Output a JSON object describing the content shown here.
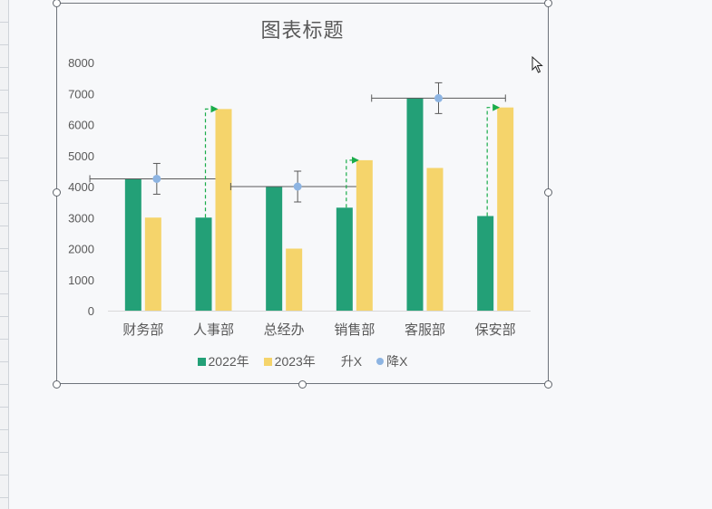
{
  "chart_data": {
    "type": "bar",
    "title": "图表标题",
    "categories": [
      "财务部",
      "人事部",
      "总经办",
      "销售部",
      "客服部",
      "保安部"
    ],
    "series": [
      {
        "name": "2022年",
        "color": "#23a077",
        "values": [
          4250,
          3000,
          4000,
          3320,
          6850,
          3050
        ]
      },
      {
        "name": "2023年",
        "color": "#f5d46b",
        "values": [
          3000,
          6500,
          2000,
          4850,
          4600,
          6550
        ]
      }
    ],
    "markers": [
      {
        "name": "升X",
        "type": "increase-arrow",
        "color": "#1aac4a",
        "applies_to": [
          "人事部",
          "销售部",
          "保安部"
        ]
      },
      {
        "name": "降X",
        "type": "point-with-error-bars",
        "color": "#8db4e2",
        "values": [
          4250,
          null,
          4000,
          null,
          6850,
          null
        ]
      }
    ],
    "ylim": [
      0,
      8000
    ],
    "yticks": [
      0,
      1000,
      2000,
      3000,
      4000,
      5000,
      6000,
      7000,
      8000
    ],
    "grid": false,
    "legend_position": "bottom"
  },
  "cursor_icon": "mouse-pointer-icon",
  "selection_handles_icon": "resize-handle-icon"
}
